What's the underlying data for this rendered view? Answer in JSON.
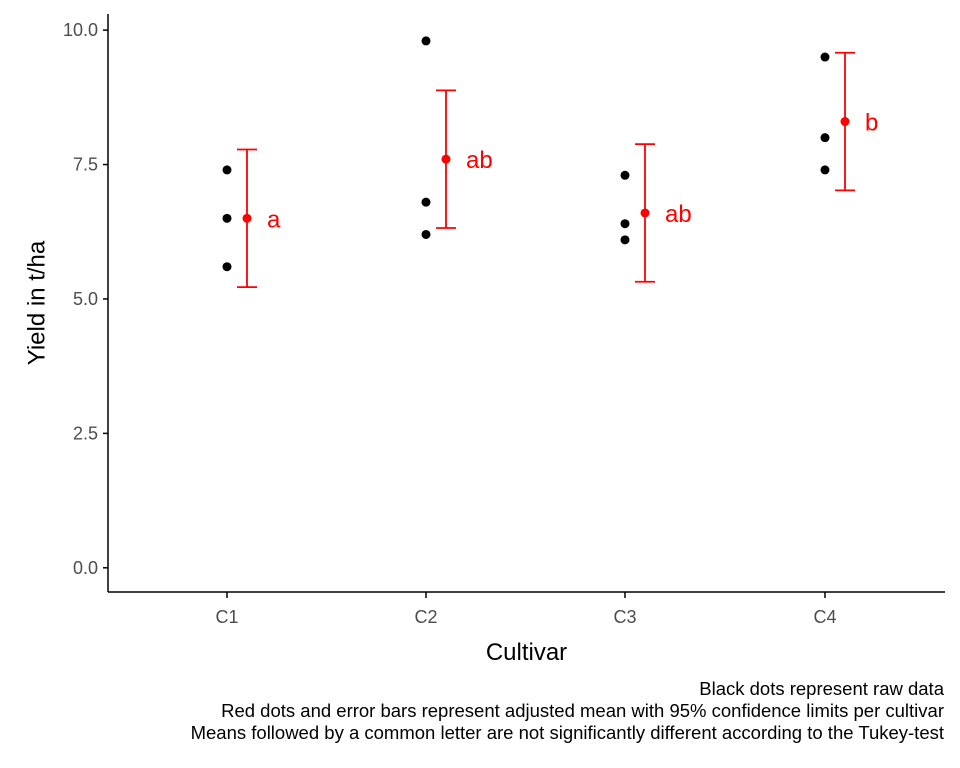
{
  "chart_data": {
    "type": "scatter",
    "xlabel": "Cultivar",
    "ylabel": "Yield in t/ha",
    "categories": [
      "C1",
      "C2",
      "C3",
      "C4"
    ],
    "ylim": [
      -0.45,
      10.3
    ],
    "yticks": [
      0.0,
      2.5,
      5.0,
      7.5,
      10.0
    ],
    "ytick_labels": [
      "0.0",
      "2.5",
      "5.0",
      "7.5",
      "10.0"
    ],
    "grid": false,
    "raw_data": [
      {
        "cultivar": "C1",
        "values": [
          7.4,
          6.5,
          5.6
        ]
      },
      {
        "cultivar": "C2",
        "values": [
          9.8,
          6.8,
          6.2
        ]
      },
      {
        "cultivar": "C3",
        "values": [
          7.3,
          6.4,
          6.1
        ]
      },
      {
        "cultivar": "C4",
        "values": [
          9.5,
          8.0,
          7.4
        ]
      }
    ],
    "adjusted_means": [
      {
        "cultivar": "C1",
        "mean": 6.5,
        "lower": 5.22,
        "upper": 7.78,
        "letter": "a"
      },
      {
        "cultivar": "C2",
        "mean": 7.6,
        "lower": 6.32,
        "upper": 8.88,
        "letter": "ab"
      },
      {
        "cultivar": "C3",
        "mean": 6.6,
        "lower": 5.32,
        "upper": 7.88,
        "letter": "ab"
      },
      {
        "cultivar": "C4",
        "mean": 8.3,
        "lower": 7.02,
        "upper": 9.58,
        "letter": "b"
      }
    ],
    "colors": {
      "raw": "#000000",
      "mean": "#ff0000",
      "axis": "#000000",
      "tick_text": "#4d4d4d"
    }
  },
  "caption": {
    "line1": "Black dots represent raw data",
    "line2": "Red dots and error bars represent adjusted mean with 95% confidence limits per cultivar",
    "line3": "Means followed by a common letter are not significantly different according to the Tukey-test"
  }
}
